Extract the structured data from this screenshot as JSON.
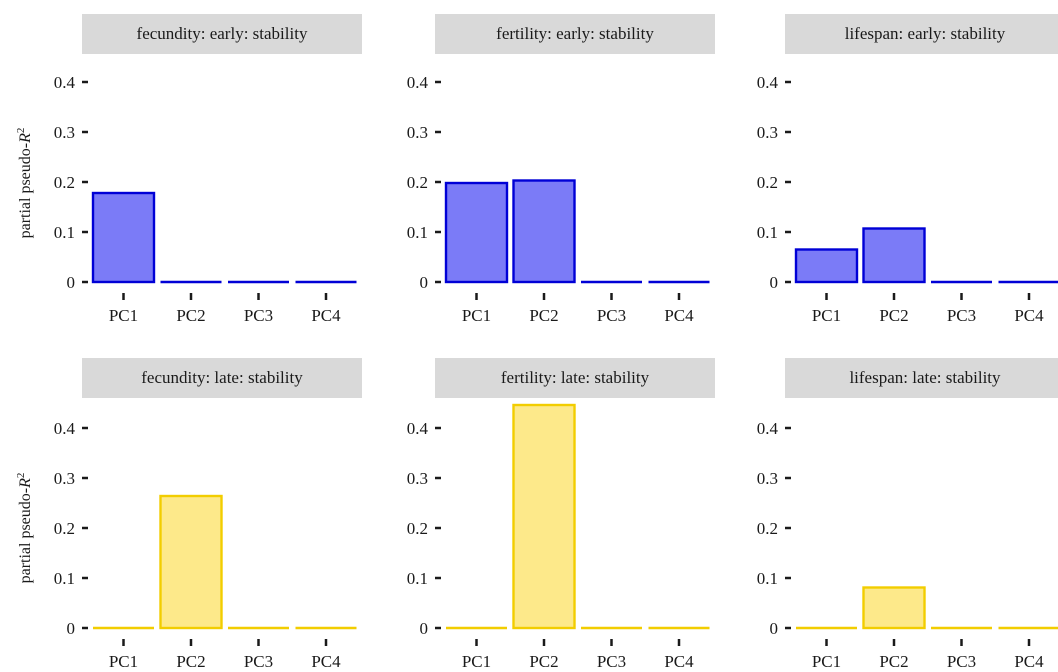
{
  "figure": {
    "ylabel_prefix": "partial pseudo-",
    "ylabel_symbol": "R",
    "ylabel_exponent": "2"
  },
  "colors": {
    "early_fill": "#7b7bf7",
    "early_stroke": "#0000d6",
    "late_fill": "#fde98a",
    "late_stroke": "#f2cd00",
    "strip_bg": "#d9d9d9",
    "axis": "#1a1a1a"
  },
  "chart_data": [
    {
      "type": "bar",
      "title": "fecundity: early: stability",
      "categories": [
        "PC1",
        "PC2",
        "PC3",
        "PC4"
      ],
      "values": [
        0.178,
        0.0,
        0.0,
        0.0
      ],
      "ylim": [
        0,
        0.4
      ],
      "yticks": [
        0,
        0.1,
        0.2,
        0.3,
        0.4
      ],
      "ytick_labels": [
        "0",
        "0.1",
        "0.2",
        "0.3",
        "0.4"
      ],
      "palette": "early"
    },
    {
      "type": "bar",
      "title": "fertility: early: stability",
      "categories": [
        "PC1",
        "PC2",
        "PC3",
        "PC4"
      ],
      "values": [
        0.198,
        0.203,
        0.0,
        0.0
      ],
      "ylim": [
        0,
        0.4
      ],
      "yticks": [
        0,
        0.1,
        0.2,
        0.3,
        0.4
      ],
      "ytick_labels": [
        "0",
        "0.1",
        "0.2",
        "0.3",
        "0.4"
      ],
      "palette": "early"
    },
    {
      "type": "bar",
      "title": "lifespan: early: stability",
      "categories": [
        "PC1",
        "PC2",
        "PC3",
        "PC4"
      ],
      "values": [
        0.065,
        0.107,
        0.0,
        0.0
      ],
      "ylim": [
        0,
        0.4
      ],
      "yticks": [
        0,
        0.1,
        0.2,
        0.3,
        0.4
      ],
      "ytick_labels": [
        "0",
        "0.1",
        "0.2",
        "0.3",
        "0.4"
      ],
      "palette": "early"
    },
    {
      "type": "bar",
      "title": "fecundity: late: stability",
      "categories": [
        "PC1",
        "PC2",
        "PC3",
        "PC4"
      ],
      "values": [
        0.0,
        0.264,
        0.0,
        0.0
      ],
      "ylim": [
        0,
        0.4
      ],
      "yticks": [
        0,
        0.1,
        0.2,
        0.3,
        0.4
      ],
      "ytick_labels": [
        "0",
        "0.1",
        "0.2",
        "0.3",
        "0.4"
      ],
      "palette": "late"
    },
    {
      "type": "bar",
      "title": "fertility: late: stability",
      "categories": [
        "PC1",
        "PC2",
        "PC3",
        "PC4"
      ],
      "values": [
        0.0,
        0.446,
        0.0,
        0.0
      ],
      "ylim": [
        0,
        0.4
      ],
      "yticks": [
        0,
        0.1,
        0.2,
        0.3,
        0.4
      ],
      "ytick_labels": [
        "0",
        "0.1",
        "0.2",
        "0.3",
        "0.4"
      ],
      "palette": "late"
    },
    {
      "type": "bar",
      "title": "lifespan: late: stability",
      "categories": [
        "PC1",
        "PC2",
        "PC3",
        "PC4"
      ],
      "values": [
        0.0,
        0.081,
        0.0,
        0.0
      ],
      "ylim": [
        0,
        0.4
      ],
      "yticks": [
        0,
        0.1,
        0.2,
        0.3,
        0.4
      ],
      "ytick_labels": [
        "0",
        "0.1",
        "0.2",
        "0.3",
        "0.4"
      ],
      "palette": "late"
    }
  ]
}
